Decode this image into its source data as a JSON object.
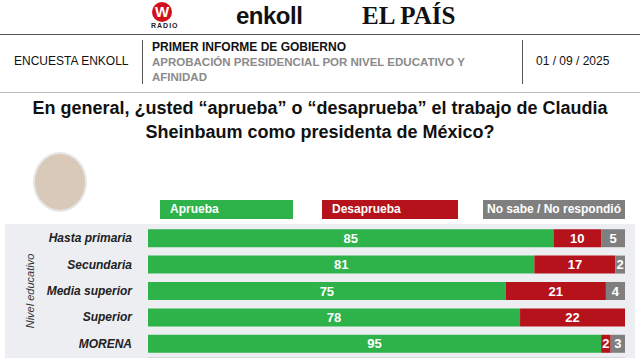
{
  "header": {
    "logos": [
      "W",
      "RADIO",
      "enkoll",
      "EL PAÍS"
    ],
    "survey": "ENCUESTA ENKOLL",
    "report": "PRIMER INFORME DE GOBIERNO",
    "subject": "APROBACIÓN PRESIDENCIAL POR NIVEL EDUCATIVO Y AFINIDAD",
    "date": "01 / 09 / 2025"
  },
  "chart_data": {
    "type": "bar",
    "title": "En general, ¿usted “aprueba” o “desaprueba” el trabajo de Claudia Sheinbaum como presidenta de México?",
    "y_label": "Nivel educativo",
    "orientation": "horizontal",
    "stacked": true,
    "data_labels": true,
    "legend": "top",
    "tick_labels": "y",
    "grid": false,
    "categories": [
      "Hasta primaria",
      "Secundaria",
      "Media superior",
      "Superior",
      "MORENA"
    ],
    "series": [
      {
        "name": "Aprueba",
        "color": "#2eb34b",
        "values": [
          85,
          81,
          75,
          78,
          95
        ]
      },
      {
        "name": "Desaprueba",
        "color": "#b5121b",
        "values": [
          10,
          17,
          21,
          22,
          2
        ]
      },
      {
        "name": "No sabe / No respondió",
        "color": "#7f7f7f",
        "values": [
          5,
          2,
          4,
          null,
          3
        ]
      }
    ],
    "xlim": [
      0,
      100
    ]
  }
}
